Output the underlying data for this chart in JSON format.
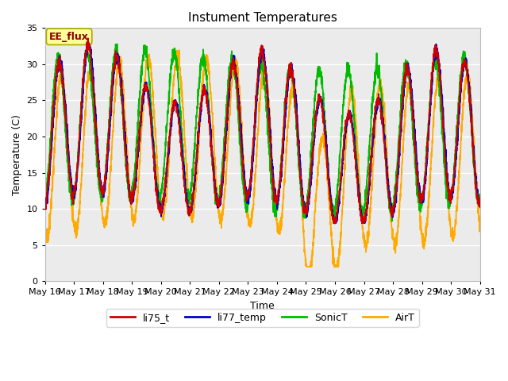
{
  "title": "Instument Temperatures",
  "xlabel": "Time",
  "ylabel": "Temperature (C)",
  "ylim": [
    0,
    35
  ],
  "colors": {
    "li75_t": "#cc0000",
    "li77_temp": "#0000cc",
    "SonicT": "#00bb00",
    "AirT": "#ffaa00"
  },
  "x_tick_labels": [
    "May 16",
    "May 17",
    "May 18",
    "May 19",
    "May 20",
    "May 21",
    "May 22",
    "May 23",
    "May 24",
    "May 25",
    "May 26",
    "May 27",
    "May 28",
    "May 29",
    "May 30",
    "May 31"
  ],
  "plot_bg_color": "#ebebeb",
  "fig_bg_color": "#ffffff",
  "annotation_text": "EE_flux",
  "annotation_bg": "#ffff99",
  "annotation_border": "#aaaa00",
  "title_fontsize": 11,
  "axis_fontsize": 9,
  "tick_fontsize": 8,
  "legend_fontsize": 9
}
